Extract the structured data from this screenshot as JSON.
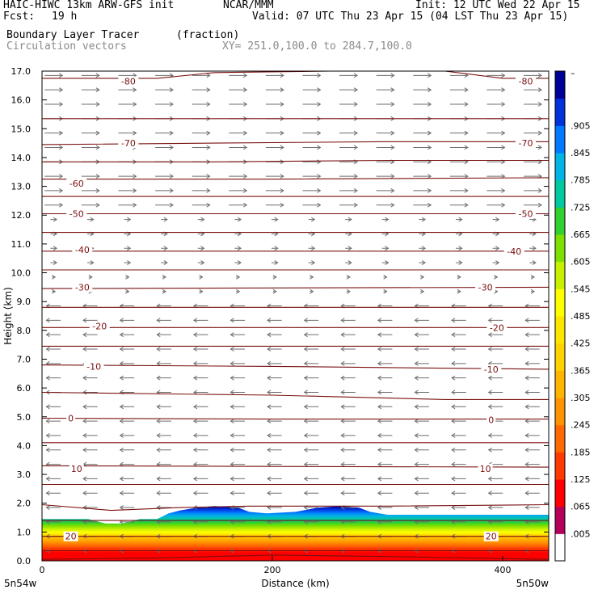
{
  "header": {
    "model": "HAIC-HIWC 13km ARW-GFS init",
    "org": "NCAR/MMM",
    "init": "Init: 12 UTC Wed 22 Apr 15",
    "fcst_label": "Fcst:",
    "fcst_value": "19 h",
    "valid": "Valid: 07 UTC Thu 23 Apr 15 (04 LST Thu 23 Apr 15)",
    "field_name": "Boundary Layer Tracer",
    "field_units": "(fraction)",
    "vector_label": "Circulation vectors",
    "xy_label": "XY= 251.0,100.0 to 284.7,100.0"
  },
  "colors": {
    "contour": "#7a1010",
    "vector": "#6e6e6e",
    "fill_scale": [
      "#ffffff",
      "#b4005a",
      "#ff0000",
      "#ff3a00",
      "#ff6a00",
      "#ff9400",
      "#ffb400",
      "#ffd200",
      "#ffe600",
      "#ffff00",
      "#c8f000",
      "#7ee000",
      "#2fd02f",
      "#00c8a0",
      "#00b4e6",
      "#0078ff",
      "#0032dc",
      "#000096"
    ]
  },
  "chart_data": {
    "type": "cross-section",
    "xlabel": "Distance (km)",
    "ylabel": "Height (km)",
    "xlim": [
      0,
      440
    ],
    "ylim": [
      0,
      17
    ],
    "x_ticks": [
      0,
      200,
      400
    ],
    "y_ticks": [
      "0.0",
      "1.0",
      "2.0",
      "3.0",
      "4.0",
      "5.0",
      "6.0",
      "7.0",
      "8.0",
      "9.0",
      "10.0",
      "11.0",
      "12.0",
      "13.0",
      "14.0",
      "15.0",
      "16.0",
      "17.0"
    ],
    "x_endpoints": [
      "5n54w",
      "5n50w"
    ],
    "colorbar_labels": [
      ".005",
      ".065",
      ".125",
      ".185",
      ".245",
      ".305",
      ".365",
      ".425",
      ".485",
      ".545",
      ".605",
      ".665",
      ".725",
      ".785",
      ".845",
      ".905"
    ],
    "colorbar_top_label": "–",
    "contour_field": {
      "levels": [
        -80,
        -70,
        -60,
        -50,
        -40,
        -30,
        -20,
        -10,
        0,
        10,
        20
      ],
      "labels": [
        {
          "text": "-80",
          "x": 75,
          "y": 16.65
        },
        {
          "text": "-80",
          "x": 420,
          "y": 16.65
        },
        {
          "text": "-70",
          "x": 75,
          "y": 14.5
        },
        {
          "text": "-70",
          "x": 420,
          "y": 14.5
        },
        {
          "text": "-60",
          "x": 30,
          "y": 13.1
        },
        {
          "text": "-50",
          "x": 30,
          "y": 12.05
        },
        {
          "text": "-50",
          "x": 420,
          "y": 12.05
        },
        {
          "text": "-40",
          "x": 35,
          "y": 10.8
        },
        {
          "text": "-40",
          "x": 410,
          "y": 10.75
        },
        {
          "text": "-30",
          "x": 35,
          "y": 9.5
        },
        {
          "text": "-30",
          "x": 385,
          "y": 9.5
        },
        {
          "text": "-20",
          "x": 50,
          "y": 8.15
        },
        {
          "text": "-20",
          "x": 395,
          "y": 8.1
        },
        {
          "text": "-10",
          "x": 45,
          "y": 6.75
        },
        {
          "text": "-10",
          "x": 390,
          "y": 6.65
        },
        {
          "text": "0",
          "x": 25,
          "y": 4.95
        },
        {
          "text": "0",
          "x": 390,
          "y": 4.9
        },
        {
          "text": "10",
          "x": 30,
          "y": 3.2
        },
        {
          "text": "10",
          "x": 385,
          "y": 3.2
        },
        {
          "text": "20",
          "x": 25,
          "y": 0.85
        },
        {
          "text": "20",
          "x": 390,
          "y": 0.85
        }
      ],
      "lines": [
        [
          [
            0,
            16.75
          ],
          [
            100,
            16.75
          ],
          [
            150,
            16.95
          ],
          [
            250,
            17.0
          ],
          [
            350,
            17.0
          ],
          [
            400,
            16.75
          ],
          [
            440,
            16.75
          ]
        ],
        [
          [
            0,
            15.35
          ],
          [
            440,
            15.35
          ]
        ],
        [
          [
            0,
            14.45
          ],
          [
            150,
            14.5
          ],
          [
            300,
            14.55
          ],
          [
            440,
            14.55
          ]
        ],
        [
          [
            0,
            13.85
          ],
          [
            150,
            13.85
          ],
          [
            300,
            13.9
          ],
          [
            440,
            13.9
          ]
        ],
        [
          [
            0,
            13.25
          ],
          [
            200,
            13.25
          ],
          [
            440,
            13.3
          ]
        ],
        [
          [
            0,
            12.65
          ],
          [
            200,
            12.65
          ],
          [
            440,
            12.65
          ]
        ],
        [
          [
            0,
            12.05
          ],
          [
            440,
            12.05
          ]
        ],
        [
          [
            0,
            11.4
          ],
          [
            200,
            11.4
          ],
          [
            440,
            11.4
          ]
        ],
        [
          [
            0,
            10.75
          ],
          [
            200,
            10.75
          ],
          [
            440,
            10.75
          ]
        ],
        [
          [
            0,
            10.1
          ],
          [
            440,
            10.1
          ]
        ],
        [
          [
            0,
            9.45
          ],
          [
            440,
            9.5
          ]
        ],
        [
          [
            0,
            8.8
          ],
          [
            440,
            8.8
          ]
        ],
        [
          [
            0,
            8.1
          ],
          [
            440,
            8.1
          ]
        ],
        [
          [
            0,
            7.45
          ],
          [
            440,
            7.45
          ]
        ],
        [
          [
            0,
            6.8
          ],
          [
            200,
            6.75
          ],
          [
            440,
            6.65
          ]
        ],
        [
          [
            0,
            5.85
          ],
          [
            200,
            5.75
          ],
          [
            350,
            5.6
          ],
          [
            440,
            5.6
          ]
        ],
        [
          [
            0,
            4.95
          ],
          [
            200,
            4.92
          ],
          [
            440,
            4.92
          ]
        ],
        [
          [
            0,
            4.1
          ],
          [
            440,
            4.1
          ]
        ],
        [
          [
            0,
            3.3
          ],
          [
            440,
            3.25
          ]
        ],
        [
          [
            0,
            2.65
          ],
          [
            440,
            2.65
          ]
        ],
        [
          [
            0,
            1.95
          ],
          [
            60,
            1.75
          ],
          [
            120,
            1.85
          ],
          [
            180,
            1.9
          ],
          [
            240,
            1.9
          ],
          [
            300,
            1.9
          ],
          [
            440,
            1.95
          ]
        ],
        [
          [
            0,
            1.4
          ],
          [
            440,
            1.4
          ]
        ],
        [
          [
            0,
            0.85
          ],
          [
            440,
            0.85
          ]
        ],
        [
          [
            0,
            0.35
          ],
          [
            440,
            0.35
          ]
        ],
        [
          [
            0,
            0.05
          ],
          [
            100,
            0.1
          ],
          [
            200,
            0.2
          ],
          [
            300,
            0.15
          ],
          [
            440,
            0.05
          ]
        ]
      ]
    },
    "boundary_layer_top": [
      [
        0,
        1.45
      ],
      [
        40,
        1.45
      ],
      [
        55,
        1.3
      ],
      [
        70,
        1.3
      ],
      [
        85,
        1.45
      ],
      [
        100,
        1.45
      ],
      [
        110,
        1.65
      ],
      [
        120,
        1.75
      ],
      [
        135,
        1.85
      ],
      [
        150,
        1.9
      ],
      [
        170,
        1.85
      ],
      [
        180,
        1.7
      ],
      [
        195,
        1.65
      ],
      [
        220,
        1.7
      ],
      [
        240,
        1.85
      ],
      [
        260,
        1.9
      ],
      [
        275,
        1.85
      ],
      [
        285,
        1.7
      ],
      [
        300,
        1.6
      ],
      [
        440,
        1.6
      ]
    ]
  }
}
